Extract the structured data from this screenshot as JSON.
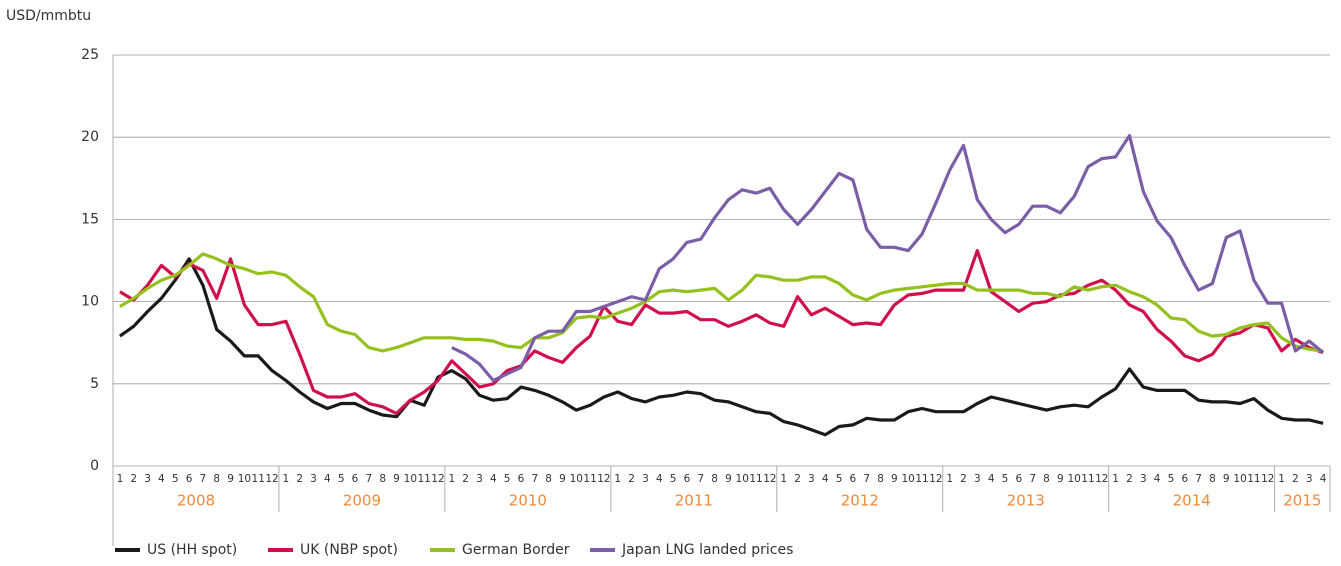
{
  "chart_data": {
    "type": "line",
    "y_label": "USD/mmbtu",
    "categories": [
      "1",
      "2",
      "3",
      "4",
      "5",
      "6",
      "7",
      "8",
      "9",
      "10",
      "11",
      "12",
      "1",
      "2",
      "3",
      "4",
      "5",
      "6",
      "7",
      "8",
      "9",
      "10",
      "11",
      "12",
      "1",
      "2",
      "3",
      "4",
      "5",
      "6",
      "7",
      "8",
      "9",
      "10",
      "11",
      "12",
      "1",
      "2",
      "3",
      "4",
      "5",
      "6",
      "7",
      "8",
      "9",
      "10",
      "11",
      "12",
      "1",
      "2",
      "3",
      "4",
      "5",
      "6",
      "7",
      "8",
      "9",
      "10",
      "11",
      "12",
      "1",
      "2",
      "3",
      "4",
      "5",
      "6",
      "7",
      "8",
      "9",
      "10",
      "11",
      "12",
      "1",
      "2",
      "3",
      "4",
      "5",
      "6",
      "7",
      "8",
      "9",
      "10",
      "11",
      "12",
      "1",
      "2",
      "3",
      "4"
    ],
    "years": [
      "2008",
      "2009",
      "2010",
      "2011",
      "2012",
      "2013",
      "2014",
      "2015"
    ],
    "ylim": [
      0,
      25
    ],
    "yticks": [
      0,
      5,
      10,
      15,
      20,
      25
    ],
    "grid": true,
    "series": [
      {
        "name": "US (HH spot)",
        "color": "#1a1a1a",
        "values": [
          7.9,
          8.5,
          9.4,
          10.2,
          11.3,
          12.6,
          11.0,
          8.3,
          7.6,
          6.7,
          6.7,
          5.8,
          5.2,
          4.5,
          3.9,
          3.5,
          3.8,
          3.8,
          3.4,
          3.1,
          3.0,
          4.0,
          3.7,
          5.4,
          5.8,
          5.3,
          4.3,
          4.0,
          4.1,
          4.8,
          4.6,
          4.3,
          3.9,
          3.4,
          3.7,
          4.2,
          4.5,
          4.1,
          3.9,
          4.2,
          4.3,
          4.5,
          4.4,
          4.0,
          3.9,
          3.6,
          3.3,
          3.2,
          2.7,
          2.5,
          2.2,
          1.9,
          2.4,
          2.5,
          2.9,
          2.8,
          2.8,
          3.3,
          3.5,
          3.3,
          3.3,
          3.3,
          3.8,
          4.2,
          4.0,
          3.8,
          3.6,
          3.4,
          3.6,
          3.7,
          3.6,
          4.2,
          4.7,
          5.9,
          4.8,
          4.6,
          4.6,
          4.6,
          4.0,
          3.9,
          3.9,
          3.8,
          4.1,
          3.4,
          2.9,
          2.8,
          2.8,
          2.6
        ]
      },
      {
        "name": "UK (NBP spot)",
        "color": "#d0104c",
        "values": [
          10.6,
          10.1,
          11.0,
          12.2,
          11.5,
          12.3,
          11.9,
          10.2,
          12.6,
          9.8,
          8.6,
          8.6,
          8.8,
          6.8,
          4.6,
          4.2,
          4.2,
          4.4,
          3.8,
          3.6,
          3.2,
          4.0,
          4.5,
          5.2,
          6.4,
          5.6,
          4.8,
          5.0,
          5.8,
          6.1,
          7.0,
          6.6,
          6.3,
          7.2,
          7.9,
          9.7,
          8.8,
          8.6,
          9.8,
          9.3,
          9.3,
          9.4,
          8.9,
          8.9,
          8.5,
          8.8,
          9.2,
          8.7,
          8.5,
          10.3,
          9.2,
          9.6,
          9.1,
          8.6,
          8.7,
          8.6,
          9.8,
          10.4,
          10.5,
          10.7,
          10.7,
          10.7,
          13.1,
          10.6,
          10.0,
          9.4,
          9.9,
          10.0,
          10.4,
          10.5,
          11.0,
          11.3,
          10.7,
          9.8,
          9.4,
          8.3,
          7.6,
          6.7,
          6.4,
          6.8,
          7.9,
          8.1,
          8.6,
          8.4,
          7.0,
          7.7,
          7.2,
          6.9
        ]
      },
      {
        "name": "German Border",
        "color": "#95c11f",
        "values": [
          9.7,
          10.2,
          10.8,
          11.3,
          11.6,
          12.2,
          12.9,
          12.6,
          12.2,
          12.0,
          11.7,
          11.8,
          11.6,
          10.9,
          10.3,
          8.6,
          8.2,
          8.0,
          7.2,
          7.0,
          7.2,
          7.5,
          7.8,
          7.8,
          7.8,
          7.7,
          7.7,
          7.6,
          7.3,
          7.2,
          7.8,
          7.8,
          8.1,
          9.0,
          9.1,
          9.0,
          9.3,
          9.6,
          10.0,
          10.6,
          10.7,
          10.6,
          10.7,
          10.8,
          10.1,
          10.7,
          11.6,
          11.5,
          11.3,
          11.3,
          11.5,
          11.5,
          11.1,
          10.4,
          10.1,
          10.5,
          10.7,
          10.8,
          10.9,
          11.0,
          11.1,
          11.1,
          10.7,
          10.7,
          10.7,
          10.7,
          10.5,
          10.5,
          10.3,
          10.9,
          10.7,
          10.9,
          11.0,
          10.6,
          10.3,
          9.8,
          9.0,
          8.9,
          8.2,
          7.9,
          8.0,
          8.4,
          8.6,
          8.7,
          7.8,
          7.3,
          7.1,
          7.0
        ]
      },
      {
        "name": "Japan LNG landed prices",
        "color": "#7b5ea7",
        "values": [
          null,
          null,
          null,
          null,
          null,
          null,
          null,
          null,
          null,
          null,
          null,
          null,
          null,
          null,
          null,
          null,
          null,
          null,
          null,
          null,
          null,
          null,
          null,
          null,
          7.2,
          6.8,
          6.2,
          5.2,
          5.6,
          6.0,
          7.8,
          8.2,
          8.2,
          9.4,
          9.4,
          9.7,
          10.0,
          10.3,
          10.1,
          12.0,
          12.6,
          13.6,
          13.8,
          15.1,
          16.2,
          16.8,
          16.6,
          16.9,
          15.6,
          14.7,
          15.6,
          16.7,
          17.8,
          17.4,
          14.4,
          13.3,
          13.3,
          13.1,
          14.1,
          16.0,
          18.0,
          19.5,
          16.2,
          15.0,
          14.2,
          14.7,
          15.8,
          15.8,
          15.4,
          16.4,
          18.2,
          18.7,
          18.8,
          20.1,
          16.7,
          14.9,
          13.9,
          12.2,
          10.7,
          11.1,
          13.9,
          14.3,
          11.3,
          9.9,
          9.9,
          7.0,
          7.6,
          6.9
        ]
      }
    ]
  }
}
